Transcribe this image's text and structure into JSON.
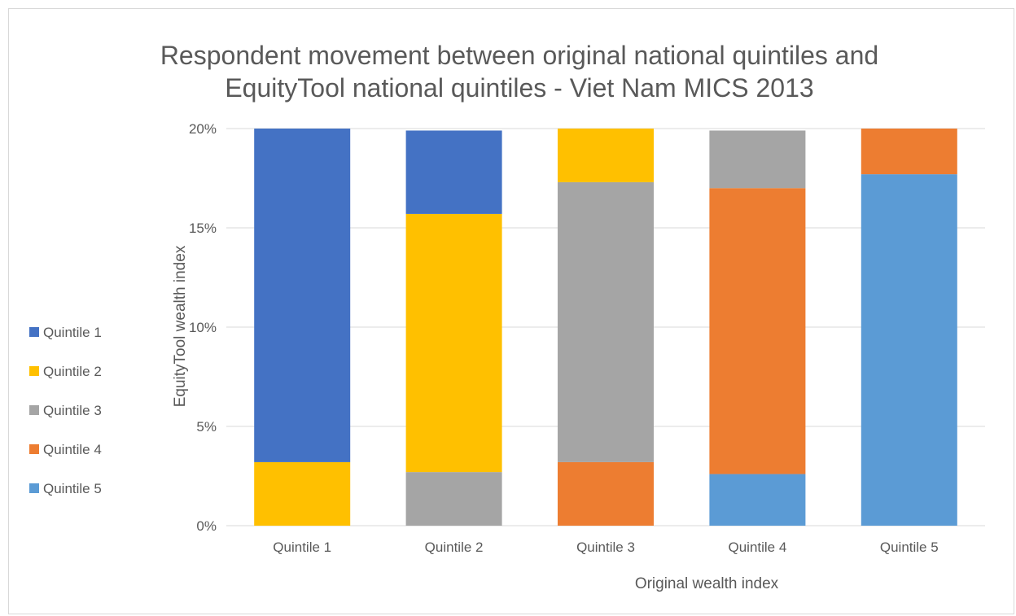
{
  "chart_data": {
    "type": "bar",
    "stacked": true,
    "title_lines": [
      "Respondent movement between original national quintiles and",
      "EquityTool national quintiles - Viet Nam MICS 2013"
    ],
    "xlabel": "Original wealth index",
    "ylabel": "EquityTool wealth index",
    "categories": [
      "Quintile 1",
      "Quintile 2",
      "Quintile 3",
      "Quintile 4",
      "Quintile 5"
    ],
    "ylim": [
      0,
      20
    ],
    "yticks": [
      "0%",
      "5%",
      "10%",
      "15%",
      "20%"
    ],
    "grid": true,
    "legend_position": "left",
    "stack_order": [
      "Quintile 5",
      "Quintile 4",
      "Quintile 3",
      "Quintile 2",
      "Quintile 1"
    ],
    "series": [
      {
        "name": "Quintile 1",
        "color": "#4472C4",
        "values": [
          16.8,
          4.2,
          0,
          0,
          0
        ]
      },
      {
        "name": "Quintile 2",
        "color": "#FFC000",
        "values": [
          3.2,
          13.0,
          2.7,
          0,
          0
        ]
      },
      {
        "name": "Quintile 3",
        "color": "#A5A5A5",
        "values": [
          0,
          2.7,
          14.1,
          2.9,
          0
        ]
      },
      {
        "name": "Quintile 4",
        "color": "#ED7D31",
        "values": [
          0,
          0,
          3.2,
          14.4,
          2.3
        ]
      },
      {
        "name": "Quintile 5",
        "color": "#5B9BD5",
        "values": [
          0,
          0,
          0,
          2.6,
          17.7
        ]
      }
    ]
  }
}
